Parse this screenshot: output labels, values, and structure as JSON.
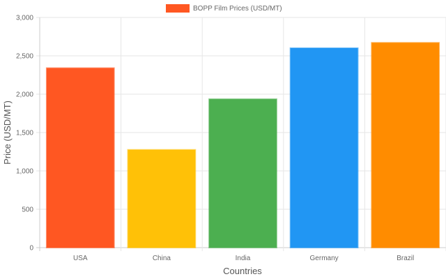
{
  "chart_data": {
    "type": "bar",
    "categories": [
      "USA",
      "China",
      "India",
      "Germany",
      "Brazil"
    ],
    "series": [
      {
        "name": "BOPP Film Prices (USD/MT)",
        "values": [
          2340,
          1275,
          1935,
          2600,
          2670
        ],
        "colors": [
          "#FF5722",
          "#FFC107",
          "#4CAF50",
          "#2196F3",
          "#FF8C00"
        ]
      }
    ],
    "legend_color": "#FF5722",
    "xlabel": "Countries",
    "ylabel": "Price (USD/MT)",
    "ylim": [
      0,
      3000
    ],
    "yticks": [
      "0",
      "500",
      "1,000",
      "1,500",
      "2,000",
      "2,500",
      "3,000"
    ],
    "ytick_values": [
      0,
      500,
      1000,
      1500,
      2000,
      2500,
      3000
    ],
    "grid": true,
    "legend_position": "top"
  }
}
